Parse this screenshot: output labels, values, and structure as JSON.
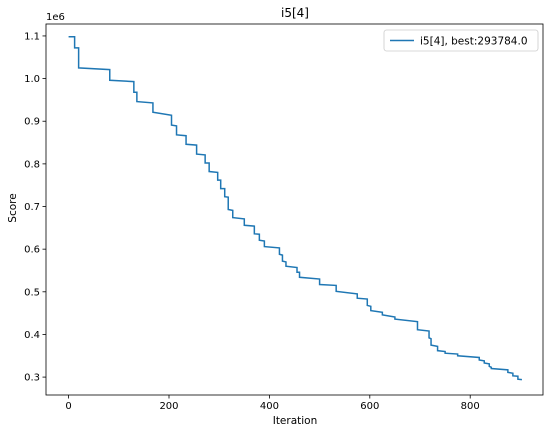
{
  "chart_data": {
    "type": "line",
    "title": "i5[4]",
    "xlabel": "Iteration",
    "ylabel": "Score",
    "y_offset_label": "1e6",
    "xlim": [
      -45,
      945
    ],
    "ylim": [
      0.258,
      1.128
    ],
    "xticks": [
      0,
      200,
      400,
      600,
      800
    ],
    "xtick_labels": [
      "0",
      "200",
      "400",
      "600",
      "800"
    ],
    "yticks": [
      0.3,
      0.4,
      0.5,
      0.6,
      0.7,
      0.8,
      0.9,
      1.0,
      1.1
    ],
    "ytick_labels": [
      "0.3",
      "0.4",
      "0.5",
      "0.6",
      "0.7",
      "0.8",
      "0.9",
      "1.0",
      "1.1"
    ],
    "grid": false,
    "legend_position": "top-right",
    "series": [
      {
        "name": "i5[4], best:293784.0",
        "color": "#1f77b4",
        "points": [
          [
            0,
            1.098
          ],
          [
            12,
            1.098
          ],
          [
            12,
            1.072
          ],
          [
            20,
            1.072
          ],
          [
            20,
            1.025
          ],
          [
            82,
            1.021
          ],
          [
            82,
            0.996
          ],
          [
            130,
            0.993
          ],
          [
            130,
            0.968
          ],
          [
            136,
            0.968
          ],
          [
            136,
            0.946
          ],
          [
            168,
            0.943
          ],
          [
            168,
            0.921
          ],
          [
            205,
            0.914
          ],
          [
            205,
            0.891
          ],
          [
            215,
            0.889
          ],
          [
            215,
            0.868
          ],
          [
            234,
            0.866
          ],
          [
            234,
            0.846
          ],
          [
            255,
            0.844
          ],
          [
            255,
            0.823
          ],
          [
            272,
            0.821
          ],
          [
            272,
            0.802
          ],
          [
            280,
            0.802
          ],
          [
            280,
            0.782
          ],
          [
            297,
            0.78
          ],
          [
            297,
            0.762
          ],
          [
            303,
            0.762
          ],
          [
            303,
            0.742
          ],
          [
            311,
            0.742
          ],
          [
            311,
            0.723
          ],
          [
            318,
            0.722
          ],
          [
            318,
            0.693
          ],
          [
            327,
            0.691
          ],
          [
            327,
            0.674
          ],
          [
            350,
            0.671
          ],
          [
            350,
            0.656
          ],
          [
            370,
            0.654
          ],
          [
            370,
            0.636
          ],
          [
            380,
            0.635
          ],
          [
            380,
            0.621
          ],
          [
            390,
            0.619
          ],
          [
            390,
            0.606
          ],
          [
            420,
            0.603
          ],
          [
            420,
            0.588
          ],
          [
            426,
            0.586
          ],
          [
            426,
            0.572
          ],
          [
            433,
            0.57
          ],
          [
            433,
            0.56
          ],
          [
            455,
            0.557
          ],
          [
            455,
            0.546
          ],
          [
            460,
            0.546
          ],
          [
            460,
            0.534
          ],
          [
            500,
            0.53
          ],
          [
            500,
            0.517
          ],
          [
            533,
            0.515
          ],
          [
            533,
            0.501
          ],
          [
            575,
            0.495
          ],
          [
            575,
            0.485
          ],
          [
            595,
            0.483
          ],
          [
            595,
            0.468
          ],
          [
            602,
            0.466
          ],
          [
            602,
            0.456
          ],
          [
            625,
            0.452
          ],
          [
            625,
            0.446
          ],
          [
            650,
            0.441
          ],
          [
            650,
            0.436
          ],
          [
            695,
            0.43
          ],
          [
            695,
            0.411
          ],
          [
            718,
            0.408
          ],
          [
            718,
            0.392
          ],
          [
            722,
            0.39
          ],
          [
            722,
            0.375
          ],
          [
            735,
            0.372
          ],
          [
            735,
            0.362
          ],
          [
            750,
            0.36
          ],
          [
            750,
            0.356
          ],
          [
            775,
            0.354
          ],
          [
            775,
            0.35
          ],
          [
            818,
            0.346
          ],
          [
            818,
            0.34
          ],
          [
            828,
            0.338
          ],
          [
            828,
            0.333
          ],
          [
            838,
            0.331
          ],
          [
            838,
            0.325
          ],
          [
            842,
            0.323
          ],
          [
            842,
            0.32
          ],
          [
            875,
            0.317
          ],
          [
            875,
            0.311
          ],
          [
            885,
            0.309
          ],
          [
            885,
            0.303
          ],
          [
            895,
            0.302
          ],
          [
            895,
            0.295
          ],
          [
            903,
            0.294
          ]
        ]
      }
    ]
  }
}
